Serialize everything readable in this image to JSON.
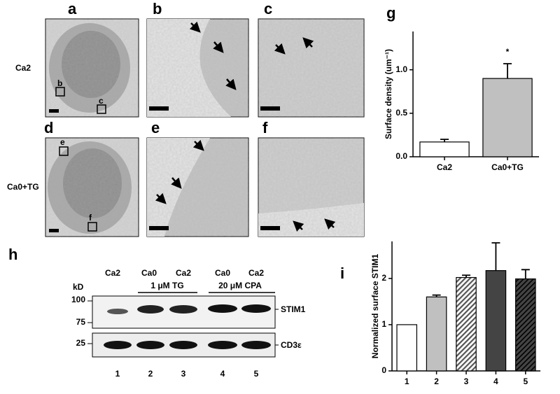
{
  "panel_labels": [
    "a",
    "b",
    "c",
    "d",
    "e",
    "f",
    "g",
    "h",
    "i"
  ],
  "conditions": [
    "Ca2",
    "Ca0+TG"
  ],
  "inset_labels": [
    "b",
    "c",
    "e",
    "f"
  ],
  "blot": {
    "treatments": [
      "Ca2",
      "Ca0",
      "Ca2",
      "Ca0",
      "Ca2"
    ],
    "groups": [
      "1 μM TG",
      "20 μM CPA"
    ],
    "unit": "kD",
    "markers": [
      "100",
      "75",
      "25"
    ],
    "proteins": [
      "STIM1",
      "CD3ε"
    ],
    "lanes": [
      "1",
      "2",
      "3",
      "4",
      "5"
    ]
  },
  "chart_data": [
    {
      "type": "bar",
      "ylabel": "Surface density (um⁻¹)",
      "categories": [
        "Ca2",
        "Ca0+TG"
      ],
      "values": [
        0.17,
        0.9
      ],
      "errors": [
        0.03,
        0.17
      ],
      "colors": [
        "#ffffff",
        "#c0c0c0"
      ],
      "hatch": [
        false,
        false
      ],
      "ylim": [
        0,
        1.44
      ],
      "yticks": [
        {
          "value": 0,
          "label": "0.0"
        },
        {
          "value": 0.5,
          "label": "0.5"
        },
        {
          "value": 1,
          "label": "1.0"
        }
      ],
      "annotation": "*"
    },
    {
      "type": "bar",
      "ylabel": "Normalized surface STIM1",
      "categories": [
        "1",
        "2",
        "3",
        "4",
        "5"
      ],
      "values": [
        1,
        1.6,
        2.02,
        2.17,
        1.99
      ],
      "errors": [
        0,
        0.04,
        0.05,
        0.6,
        0.2
      ],
      "colors": [
        "#ffffff",
        "#c0c0c0",
        "#c0c0c0",
        "#444444",
        "#444444"
      ],
      "hatch": [
        false,
        false,
        true,
        false,
        true
      ],
      "ylim": [
        0,
        2.8
      ],
      "yticks": [
        0,
        1,
        2
      ]
    }
  ]
}
